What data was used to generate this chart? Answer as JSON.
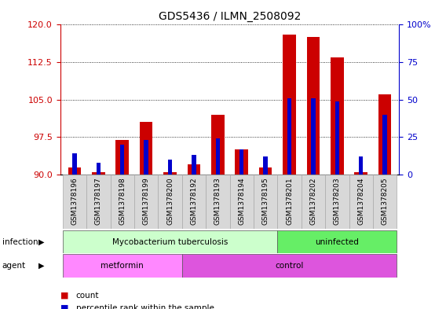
{
  "title": "GDS5436 / ILMN_2508092",
  "samples": [
    "GSM1378196",
    "GSM1378197",
    "GSM1378198",
    "GSM1378199",
    "GSM1378200",
    "GSM1378192",
    "GSM1378193",
    "GSM1378194",
    "GSM1378195",
    "GSM1378201",
    "GSM1378202",
    "GSM1378203",
    "GSM1378204",
    "GSM1378205"
  ],
  "red_values": [
    91.5,
    90.5,
    97.0,
    100.5,
    90.5,
    92.0,
    102.0,
    95.0,
    91.5,
    118.0,
    117.5,
    113.5,
    90.5,
    106.0
  ],
  "blue_values": [
    14,
    8,
    20,
    23,
    10,
    13,
    24,
    17,
    12,
    51,
    51,
    49,
    12,
    40
  ],
  "ymin": 90,
  "ymax": 120,
  "yticks_left": [
    90,
    97.5,
    105,
    112.5,
    120
  ],
  "yticks_right": [
    0,
    25,
    50,
    75,
    100
  ],
  "left_color": "#cc0000",
  "right_color": "#0000cc",
  "red_bar_width": 0.55,
  "blue_bar_width": 0.18,
  "infection_groups": [
    {
      "label": "Mycobacterium tuberculosis",
      "start": 0,
      "end": 9,
      "color": "#ccffcc"
    },
    {
      "label": "uninfected",
      "start": 9,
      "end": 14,
      "color": "#66ee66"
    }
  ],
  "agent_groups": [
    {
      "label": "metformin",
      "start": 0,
      "end": 5,
      "color": "#ff88ff"
    },
    {
      "label": "control",
      "start": 5,
      "end": 14,
      "color": "#dd55dd"
    }
  ],
  "infection_row_label": "infection",
  "agent_row_label": "agent",
  "legend_count_color": "#cc0000",
  "legend_percentile_color": "#0000cc"
}
